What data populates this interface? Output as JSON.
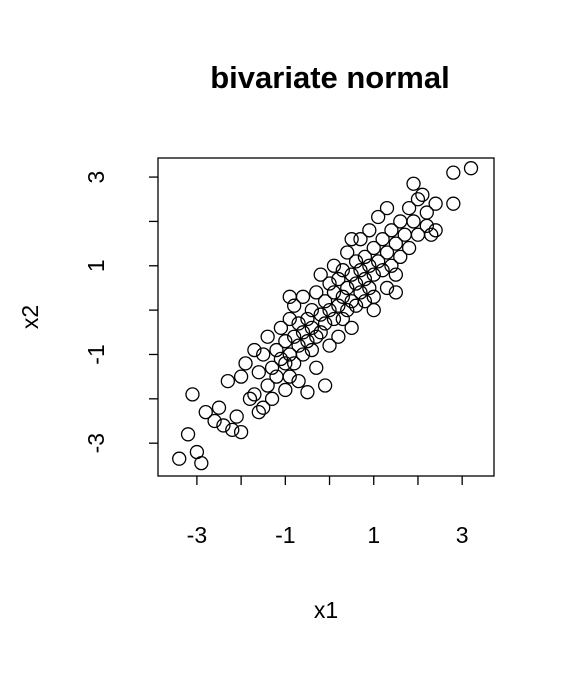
{
  "chart_data": {
    "type": "scatter",
    "title": "bivariate normal",
    "xlabel": "x1",
    "ylabel": "x2",
    "xlim": [
      -3.88,
      3.72
    ],
    "ylim": [
      -3.74,
      3.43
    ],
    "xticks": [
      -3,
      -1,
      1,
      3
    ],
    "xticks_unlabeled": [
      -2,
      0,
      2
    ],
    "yticks": [
      -3,
      -1,
      1,
      3
    ],
    "yticks_unlabeled": [
      -2,
      0,
      2
    ],
    "color": "#000000",
    "x": [
      -3.4,
      -3.2,
      -3.0,
      -2.9,
      -3.1,
      -2.8,
      -2.6,
      -2.5,
      -2.4,
      -2.3,
      -2.2,
      -2.1,
      -2.0,
      -2.0,
      -1.9,
      -1.8,
      -1.7,
      -1.6,
      -1.6,
      -1.5,
      -1.5,
      -1.4,
      -1.4,
      -1.3,
      -1.3,
      -1.2,
      -1.2,
      -1.1,
      -1.1,
      -1.0,
      -1.0,
      -1.0,
      -0.9,
      -0.9,
      -0.9,
      -0.8,
      -0.8,
      -0.8,
      -0.7,
      -0.7,
      -0.7,
      -0.6,
      -0.6,
      -0.6,
      -0.5,
      -0.5,
      -0.5,
      -0.4,
      -0.4,
      -0.4,
      -0.3,
      -0.3,
      -0.3,
      -0.2,
      -0.2,
      -0.2,
      -0.1,
      -0.1,
      -0.1,
      0.0,
      0.0,
      0.0,
      0.1,
      0.1,
      0.1,
      0.2,
      0.2,
      0.2,
      0.3,
      0.3,
      0.3,
      0.4,
      0.4,
      0.4,
      0.5,
      0.5,
      0.5,
      0.6,
      0.6,
      0.6,
      0.7,
      0.7,
      0.7,
      0.8,
      0.8,
      0.8,
      0.9,
      0.9,
      0.9,
      1.0,
      1.0,
      1.0,
      1.1,
      1.1,
      1.2,
      1.2,
      1.3,
      1.3,
      1.4,
      1.4,
      1.5,
      1.5,
      1.6,
      1.6,
      1.7,
      1.8,
      1.8,
      1.9,
      1.9,
      2.0,
      2.0,
      2.1,
      2.2,
      2.2,
      2.3,
      2.4,
      2.4,
      2.8,
      2.8,
      3.2,
      1.3,
      0.5,
      -0.9,
      -1.7,
      1.0,
      1.5
    ],
    "y": [
      -3.35,
      -2.8,
      -3.2,
      -3.45,
      -1.9,
      -2.3,
      -2.5,
      -2.2,
      -2.6,
      -1.6,
      -2.7,
      -2.4,
      -2.75,
      -1.5,
      -1.2,
      -2.0,
      -1.9,
      -2.3,
      -1.4,
      -2.2,
      -1.0,
      -1.7,
      -0.6,
      -1.3,
      -2.0,
      -0.9,
      -1.5,
      -0.4,
      -1.1,
      -1.8,
      -0.7,
      -1.2,
      -0.2,
      -1.0,
      -1.5,
      -0.6,
      -1.2,
      0.1,
      -0.8,
      -0.3,
      -1.6,
      -0.5,
      0.3,
      -1.0,
      -1.85,
      -0.2,
      -0.7,
      0.0,
      -0.9,
      -0.4,
      0.4,
      -0.6,
      -1.3,
      -0.1,
      -0.5,
      0.8,
      -1.7,
      0.2,
      -0.3,
      0.0,
      -0.8,
      0.6,
      -0.2,
      0.4,
      1.0,
      0.1,
      -0.6,
      0.7,
      0.3,
      -0.2,
      0.9,
      0.5,
      0.0,
      1.3,
      0.2,
      0.8,
      -0.4,
      0.6,
      1.1,
      0.1,
      0.9,
      0.4,
      1.6,
      0.7,
      0.2,
      1.2,
      1.0,
      0.5,
      1.8,
      0.8,
      1.4,
      0.3,
      1.1,
      2.1,
      0.9,
      1.6,
      1.3,
      0.5,
      1.8,
      1.0,
      1.5,
      0.8,
      2.0,
      1.2,
      1.7,
      2.3,
      1.4,
      2.85,
      2.0,
      1.7,
      2.5,
      2.6,
      1.9,
      2.2,
      1.7,
      2.4,
      1.8,
      2.4,
      3.1,
      3.2,
      2.3,
      1.6,
      0.3,
      -0.9,
      0.0,
      0.4
    ]
  }
}
